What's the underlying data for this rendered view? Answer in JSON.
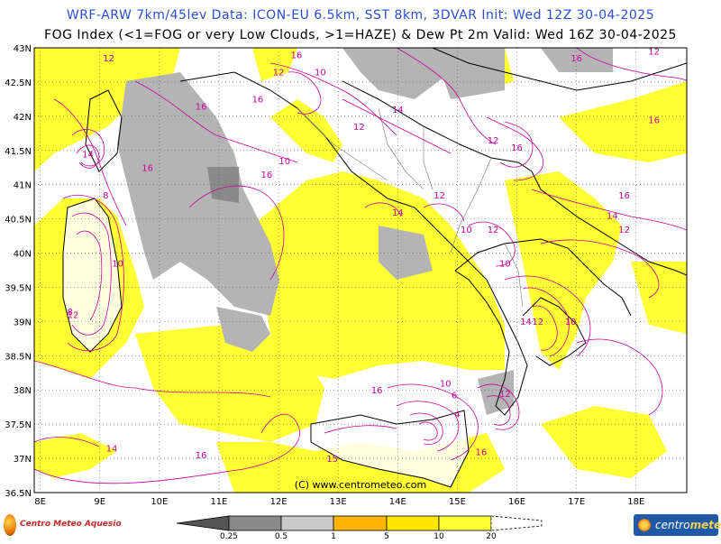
{
  "header": {
    "line1": "WRF-ARW 7km/45lev   Data: ICON-EU 6.5km, SST 8km, 3DVAR   Init: Wed 12Z 30-04-2025",
    "line2": "FOG Index (<1=FOG or very Low Clouds, >1=HAZE) & Dew Pt 2m   Valid: Wed 16Z 30-04-2025"
  },
  "map": {
    "lat_labels": [
      "43N",
      "42.5N",
      "42N",
      "41.5N",
      "41N",
      "40.5N",
      "40N",
      "39.5N",
      "39N",
      "38.5N",
      "38N",
      "37.5N",
      "37N",
      "36.5N"
    ],
    "lon_labels": [
      "8E",
      "9E",
      "10E",
      "11E",
      "12E",
      "13E",
      "14E",
      "15E",
      "16E",
      "17E",
      "18E"
    ],
    "lat_range": [
      36.5,
      43
    ],
    "lon_range": [
      7.9,
      18.85
    ],
    "contour_labels": [
      {
        "text": "12",
        "lon": 9.15,
        "lat": 42.8
      },
      {
        "text": "16",
        "lon": 10.7,
        "lat": 42.1
      },
      {
        "text": "14",
        "lon": 8.8,
        "lat": 41.4
      },
      {
        "text": "16",
        "lon": 9.8,
        "lat": 41.2
      },
      {
        "text": "8",
        "lon": 9.1,
        "lat": 40.8
      },
      {
        "text": "10",
        "lon": 9.3,
        "lat": 39.8
      },
      {
        "text": "12",
        "lon": 8.55,
        "lat": 39.05
      },
      {
        "text": "8",
        "lon": 8.5,
        "lat": 39.1
      },
      {
        "text": "14",
        "lon": 9.2,
        "lat": 37.1
      },
      {
        "text": "16",
        "lon": 10.7,
        "lat": 37.0
      },
      {
        "text": "16",
        "lon": 11.65,
        "lat": 42.2
      },
      {
        "text": "16",
        "lon": 11.8,
        "lat": 41.1
      },
      {
        "text": "15",
        "lon": 12.9,
        "lat": 36.95
      },
      {
        "text": "16",
        "lon": 13.65,
        "lat": 37.95
      },
      {
        "text": "10",
        "lon": 14.8,
        "lat": 38.05
      },
      {
        "text": "6",
        "lon": 14.95,
        "lat": 37.88
      },
      {
        "text": "4",
        "lon": 15.0,
        "lat": 37.6
      },
      {
        "text": "12",
        "lon": 15.8,
        "lat": 37.9
      },
      {
        "text": "16",
        "lon": 15.4,
        "lat": 37.05
      },
      {
        "text": "12",
        "lon": 16.35,
        "lat": 38.95
      },
      {
        "text": "14",
        "lon": 16.15,
        "lat": 38.95
      },
      {
        "text": "10",
        "lon": 16.9,
        "lat": 38.95
      },
      {
        "text": "10",
        "lon": 15.8,
        "lat": 39.8
      },
      {
        "text": "10",
        "lon": 15.15,
        "lat": 40.3
      },
      {
        "text": "12",
        "lon": 15.6,
        "lat": 40.3
      },
      {
        "text": "12",
        "lon": 14.7,
        "lat": 40.8
      },
      {
        "text": "14",
        "lon": 14.0,
        "lat": 40.55
      },
      {
        "text": "14",
        "lon": 17.6,
        "lat": 40.5
      },
      {
        "text": "12",
        "lon": 17.8,
        "lat": 40.3
      },
      {
        "text": "16",
        "lon": 17.8,
        "lat": 40.8
      },
      {
        "text": "16",
        "lon": 18.3,
        "lat": 41.9
      },
      {
        "text": "12",
        "lon": 15.6,
        "lat": 41.6
      },
      {
        "text": "16",
        "lon": 16.0,
        "lat": 41.5
      },
      {
        "text": "16",
        "lon": 17.0,
        "lat": 42.8
      },
      {
        "text": "12",
        "lon": 18.3,
        "lat": 42.9
      },
      {
        "text": "12",
        "lon": 12.0,
        "lat": 42.6
      },
      {
        "text": "16",
        "lon": 12.3,
        "lat": 42.85
      },
      {
        "text": "10",
        "lon": 12.7,
        "lat": 42.6
      },
      {
        "text": "14",
        "lon": 14.0,
        "lat": 42.05
      },
      {
        "text": "12",
        "lon": 13.35,
        "lat": 41.8
      },
      {
        "text": "10",
        "lon": 12.1,
        "lat": 41.3
      }
    ],
    "copyright": "(C) www.centrometeo.com"
  },
  "legend": {
    "labels": [
      "0.25",
      "0.5",
      "1",
      "5",
      "10",
      "20"
    ],
    "colors": [
      "#555555",
      "#8a8a8a",
      "#c9c9c9",
      "#ffb400",
      "#ffe600",
      "#ffff33",
      "#ffffff"
    ]
  },
  "logos": {
    "left": "Centro Meteo Aquesio",
    "right_a": "centro",
    "right_b": "meteo"
  },
  "colors": {
    "sea_fog_haze_low": "#b4b4b4",
    "haze": "#ffff33",
    "background": "#ffffff",
    "contour": "#c8009e",
    "border": "#000000"
  }
}
